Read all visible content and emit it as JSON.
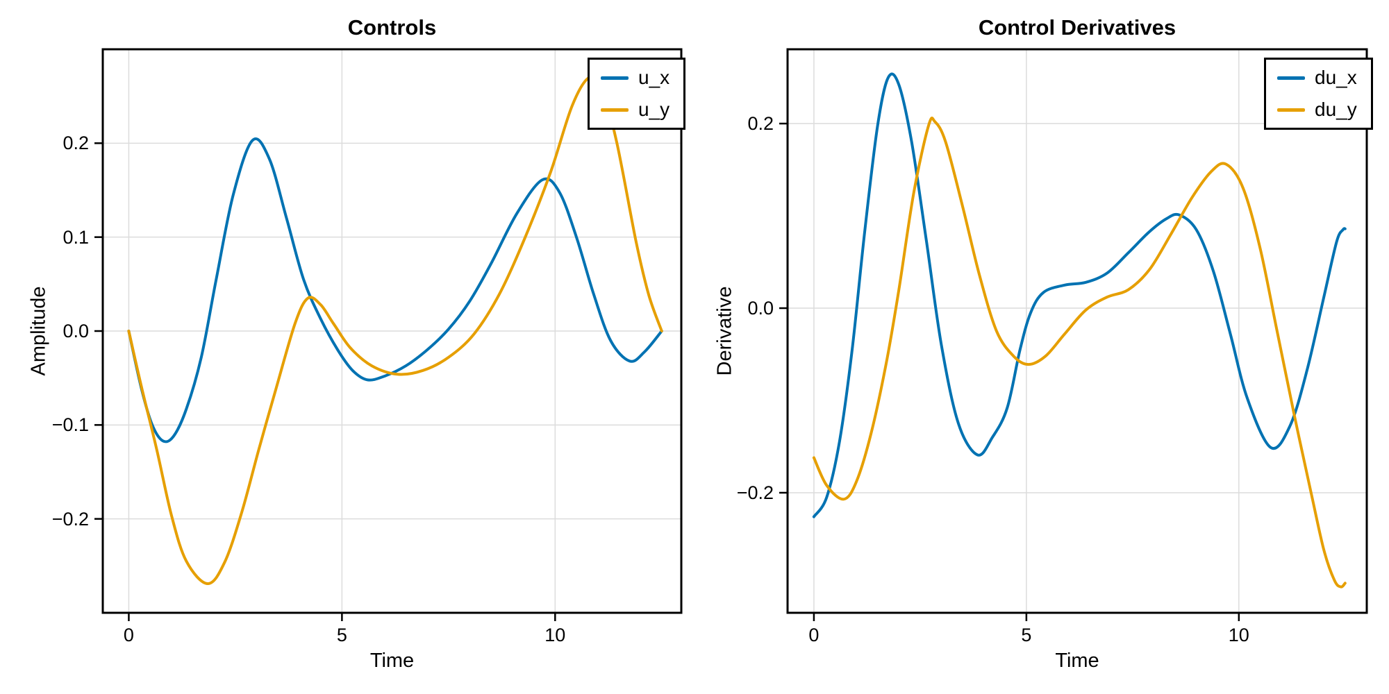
{
  "figure": {
    "background": "#ffffff",
    "spine_color": "#000000",
    "grid_color": "#dcdcdc"
  },
  "chart_data": [
    {
      "type": "line",
      "title": "Controls",
      "xlabel": "Time",
      "ylabel": "Amplitude",
      "xlim": [
        -0.61,
        12.96
      ],
      "ylim": [
        -0.3,
        0.3
      ],
      "grid": true,
      "legend_position": "top-right",
      "xticks": [
        0,
        5,
        10
      ],
      "xtick_labels": [
        "0",
        "5",
        "10"
      ],
      "yticks": [
        0.2,
        0.1,
        0.0,
        -0.1,
        -0.2
      ],
      "ytick_labels": [
        "0.2",
        "0.1",
        "0.0",
        "−0.1",
        "−0.2"
      ],
      "series": [
        {
          "name": "u_x",
          "color": "#0072B2",
          "points": [
            [
              0,
              0
            ],
            [
              0.3,
              -0.062
            ],
            [
              0.55,
              -0.1
            ],
            [
              0.8,
              -0.117
            ],
            [
              1.05,
              -0.112
            ],
            [
              1.35,
              -0.083
            ],
            [
              1.7,
              -0.028
            ],
            [
              2.05,
              0.055
            ],
            [
              2.45,
              0.145
            ],
            [
              2.9,
              0.203
            ],
            [
              3.3,
              0.183
            ],
            [
              3.7,
              0.12
            ],
            [
              4.1,
              0.055
            ],
            [
              4.5,
              0.013
            ],
            [
              4.9,
              -0.02
            ],
            [
              5.25,
              -0.042
            ],
            [
              5.6,
              -0.052
            ],
            [
              6.0,
              -0.048
            ],
            [
              6.5,
              -0.037
            ],
            [
              7.0,
              -0.02
            ],
            [
              7.5,
              0.002
            ],
            [
              8.0,
              0.032
            ],
            [
              8.5,
              0.072
            ],
            [
              9.1,
              0.125
            ],
            [
              9.7,
              0.161
            ],
            [
              10.1,
              0.148
            ],
            [
              10.5,
              0.1
            ],
            [
              10.9,
              0.04
            ],
            [
              11.3,
              -0.01
            ],
            [
              11.75,
              -0.032
            ],
            [
              12.1,
              -0.022
            ],
            [
              12.5,
              0
            ]
          ]
        },
        {
          "name": "u_y",
          "color": "#E69F00",
          "points": [
            [
              0,
              0
            ],
            [
              0.3,
              -0.06
            ],
            [
              0.65,
              -0.125
            ],
            [
              1.0,
              -0.196
            ],
            [
              1.35,
              -0.245
            ],
            [
              1.85,
              -0.269
            ],
            [
              2.25,
              -0.246
            ],
            [
              2.65,
              -0.193
            ],
            [
              3.05,
              -0.126
            ],
            [
              3.45,
              -0.062
            ],
            [
              3.9,
              0.008
            ],
            [
              4.2,
              0.035
            ],
            [
              4.5,
              0.028
            ],
            [
              4.8,
              0.008
            ],
            [
              5.2,
              -0.018
            ],
            [
              5.7,
              -0.037
            ],
            [
              6.3,
              -0.046
            ],
            [
              6.9,
              -0.042
            ],
            [
              7.5,
              -0.028
            ],
            [
              8.1,
              -0.003
            ],
            [
              8.7,
              0.04
            ],
            [
              9.3,
              0.1
            ],
            [
              9.9,
              0.17
            ],
            [
              10.4,
              0.24
            ],
            [
              10.8,
              0.27
            ],
            [
              11.1,
              0.258
            ],
            [
              11.45,
              0.2
            ],
            [
              11.9,
              0.095
            ],
            [
              12.2,
              0.038
            ],
            [
              12.5,
              0
            ]
          ]
        }
      ]
    },
    {
      "type": "line",
      "title": "Control Derivatives",
      "xlabel": "Time",
      "ylabel": "Derivative",
      "xlim": [
        -0.62,
        13.01
      ],
      "ylim": [
        -0.3301,
        0.2805
      ],
      "grid": true,
      "legend_position": "top-right",
      "xticks": [
        0,
        5,
        10
      ],
      "xtick_labels": [
        "0",
        "5",
        "10"
      ],
      "yticks": [
        0.2,
        0.0,
        -0.2
      ],
      "ytick_labels": [
        "0.2",
        "0.0",
        "−0.2"
      ],
      "series": [
        {
          "name": "du_x",
          "color": "#0072B2",
          "points": [
            [
              0,
              -0.226
            ],
            [
              0.3,
              -0.205
            ],
            [
              0.6,
              -0.145
            ],
            [
              0.9,
              -0.045
            ],
            [
              1.2,
              0.085
            ],
            [
              1.5,
              0.198
            ],
            [
              1.75,
              0.25
            ],
            [
              2.0,
              0.242
            ],
            [
              2.3,
              0.18
            ],
            [
              2.65,
              0.072
            ],
            [
              3.0,
              -0.04
            ],
            [
              3.4,
              -0.125
            ],
            [
              3.85,
              -0.159
            ],
            [
              4.2,
              -0.14
            ],
            [
              4.55,
              -0.108
            ],
            [
              4.85,
              -0.045
            ],
            [
              5.1,
              -0.005
            ],
            [
              5.4,
              0.017
            ],
            [
              5.9,
              0.025
            ],
            [
              6.4,
              0.028
            ],
            [
              6.9,
              0.038
            ],
            [
              7.4,
              0.06
            ],
            [
              7.9,
              0.083
            ],
            [
              8.3,
              0.097
            ],
            [
              8.6,
              0.101
            ],
            [
              9.0,
              0.085
            ],
            [
              9.4,
              0.04
            ],
            [
              9.8,
              -0.028
            ],
            [
              10.2,
              -0.098
            ],
            [
              10.75,
              -0.151
            ],
            [
              11.2,
              -0.128
            ],
            [
              11.6,
              -0.068
            ],
            [
              12.0,
              0.012
            ],
            [
              12.3,
              0.072
            ],
            [
              12.45,
              0.085
            ],
            [
              12.5,
              0.086
            ]
          ]
        },
        {
          "name": "du_y",
          "color": "#E69F00",
          "points": [
            [
              0,
              -0.162
            ],
            [
              0.3,
              -0.192
            ],
            [
              0.7,
              -0.207
            ],
            [
              1.0,
              -0.188
            ],
            [
              1.35,
              -0.135
            ],
            [
              1.7,
              -0.06
            ],
            [
              2.0,
              0.02
            ],
            [
              2.35,
              0.125
            ],
            [
              2.7,
              0.198
            ],
            [
              2.85,
              0.202
            ],
            [
              3.1,
              0.18
            ],
            [
              3.5,
              0.11
            ],
            [
              3.9,
              0.035
            ],
            [
              4.3,
              -0.025
            ],
            [
              4.7,
              -0.052
            ],
            [
              5.05,
              -0.061
            ],
            [
              5.45,
              -0.052
            ],
            [
              5.9,
              -0.028
            ],
            [
              6.4,
              -0.002
            ],
            [
              6.9,
              0.012
            ],
            [
              7.4,
              0.02
            ],
            [
              7.9,
              0.042
            ],
            [
              8.4,
              0.08
            ],
            [
              8.9,
              0.12
            ],
            [
              9.35,
              0.148
            ],
            [
              9.7,
              0.156
            ],
            [
              10.1,
              0.13
            ],
            [
              10.5,
              0.065
            ],
            [
              10.9,
              -0.025
            ],
            [
              11.3,
              -0.115
            ],
            [
              11.7,
              -0.2
            ],
            [
              12.0,
              -0.262
            ],
            [
              12.25,
              -0.295
            ],
            [
              12.4,
              -0.302
            ],
            [
              12.5,
              -0.298
            ]
          ]
        }
      ]
    }
  ]
}
